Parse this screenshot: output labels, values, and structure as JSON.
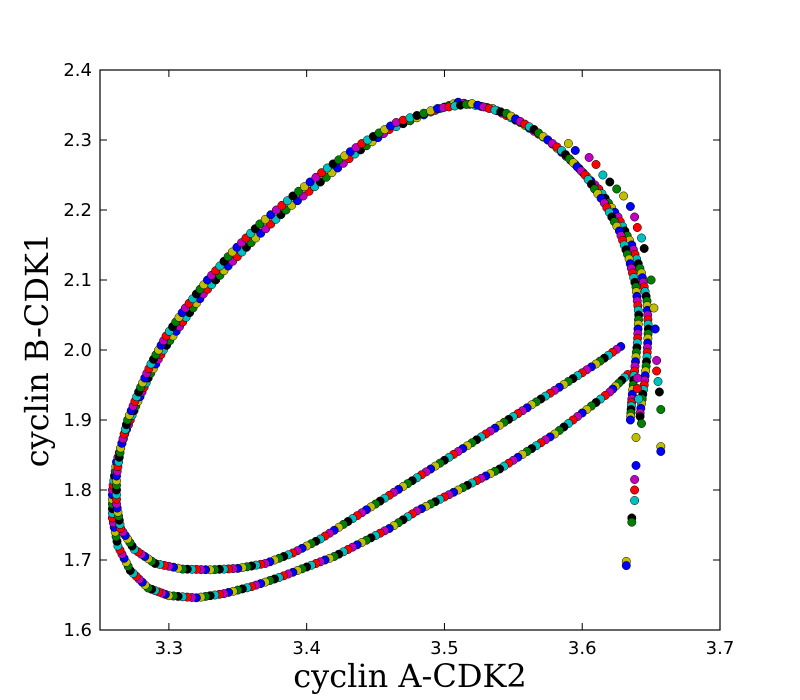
{
  "chart_data": {
    "type": "scatter",
    "title": "",
    "xlabel": "cyclin A-CDK2",
    "ylabel": "cyclin B-CDK1",
    "xlim": [
      3.25,
      3.7
    ],
    "ylim": [
      1.6,
      2.4
    ],
    "x_ticks": [
      "3.3",
      "3.4",
      "3.5",
      "3.6",
      "3.7"
    ],
    "y_ticks": [
      "1.6",
      "1.7",
      "1.8",
      "1.9",
      "2.0",
      "2.1",
      "2.2",
      "2.3",
      "2.4"
    ],
    "grid": false,
    "marker_colors": [
      "#ff0000",
      "#0000ff",
      "#008000",
      "#00bfbf",
      "#bf00bf",
      "#bfbf00",
      "#000000"
    ],
    "series": [
      {
        "trajectory": "outer-loop",
        "points": [
          [
            3.633,
            1.965
          ],
          [
            3.62,
            1.94
          ],
          [
            3.6,
            1.91
          ],
          [
            3.58,
            1.88
          ],
          [
            3.56,
            1.855
          ],
          [
            3.54,
            1.83
          ],
          [
            3.52,
            1.81
          ],
          [
            3.5,
            1.79
          ],
          [
            3.48,
            1.77
          ],
          [
            3.46,
            1.745
          ],
          [
            3.44,
            1.725
          ],
          [
            3.42,
            1.705
          ],
          [
            3.4,
            1.69
          ],
          [
            3.38,
            1.675
          ],
          [
            3.36,
            1.662
          ],
          [
            3.34,
            1.652
          ],
          [
            3.32,
            1.646
          ],
          [
            3.3,
            1.649
          ],
          [
            3.285,
            1.66
          ],
          [
            3.272,
            1.685
          ],
          [
            3.263,
            1.72
          ],
          [
            3.259,
            1.76
          ],
          [
            3.259,
            1.8
          ],
          [
            3.262,
            1.84
          ],
          [
            3.268,
            1.88
          ],
          [
            3.276,
            1.92
          ],
          [
            3.285,
            1.96
          ],
          [
            3.296,
            2.0
          ],
          [
            3.31,
            2.04
          ],
          [
            3.325,
            2.08
          ],
          [
            3.343,
            2.12
          ],
          [
            3.363,
            2.16
          ],
          [
            3.385,
            2.2
          ],
          [
            3.41,
            2.24
          ],
          [
            3.435,
            2.28
          ],
          [
            3.46,
            2.315
          ],
          [
            3.49,
            2.34
          ],
          [
            3.51,
            2.354
          ],
          [
            3.535,
            2.345
          ],
          [
            3.555,
            2.325
          ],
          [
            3.575,
            2.3
          ],
          [
            3.595,
            2.265
          ],
          [
            3.612,
            2.23
          ],
          [
            3.626,
            2.19
          ],
          [
            3.636,
            2.15
          ],
          [
            3.643,
            2.11
          ],
          [
            3.647,
            2.07
          ],
          [
            3.648,
            2.03
          ],
          [
            3.647,
            1.99
          ],
          [
            3.645,
            1.95
          ],
          [
            3.642,
            1.91
          ]
        ]
      },
      {
        "trajectory": "inner-loop",
        "points": [
          [
            3.628,
            2.005
          ],
          [
            3.61,
            1.98
          ],
          [
            3.59,
            1.955
          ],
          [
            3.57,
            1.93
          ],
          [
            3.55,
            1.905
          ],
          [
            3.53,
            1.88
          ],
          [
            3.51,
            1.855
          ],
          [
            3.49,
            1.83
          ],
          [
            3.47,
            1.805
          ],
          [
            3.45,
            1.78
          ],
          [
            3.43,
            1.755
          ],
          [
            3.41,
            1.73
          ],
          [
            3.39,
            1.71
          ],
          [
            3.37,
            1.695
          ],
          [
            3.35,
            1.688
          ],
          [
            3.33,
            1.686
          ],
          [
            3.31,
            1.687
          ],
          [
            3.29,
            1.695
          ],
          [
            3.275,
            1.715
          ],
          [
            3.265,
            1.745
          ],
          [
            3.262,
            1.78
          ],
          [
            3.262,
            1.82
          ],
          [
            3.265,
            1.86
          ],
          [
            3.27,
            1.9
          ],
          [
            3.278,
            1.94
          ],
          [
            3.287,
            1.98
          ],
          [
            3.298,
            2.02
          ],
          [
            3.312,
            2.06
          ],
          [
            3.328,
            2.1
          ],
          [
            3.346,
            2.14
          ],
          [
            3.366,
            2.18
          ],
          [
            3.39,
            2.22
          ],
          [
            3.415,
            2.26
          ],
          [
            3.44,
            2.295
          ],
          [
            3.465,
            2.325
          ],
          [
            3.495,
            2.345
          ],
          [
            3.52,
            2.352
          ],
          [
            3.545,
            2.338
          ],
          [
            3.565,
            2.315
          ],
          [
            3.585,
            2.285
          ],
          [
            3.602,
            2.25
          ],
          [
            3.616,
            2.21
          ],
          [
            3.627,
            2.17
          ],
          [
            3.634,
            2.13
          ],
          [
            3.639,
            2.09
          ],
          [
            3.641,
            2.05
          ],
          [
            3.64,
            2.01
          ],
          [
            3.638,
            1.97
          ],
          [
            3.636,
            1.93
          ],
          [
            3.635,
            1.9
          ]
        ]
      },
      {
        "trajectory": "scattered-transients",
        "points": [
          [
            3.59,
            2.295
          ],
          [
            3.595,
            2.285
          ],
          [
            3.605,
            2.275
          ],
          [
            3.61,
            2.265
          ],
          [
            3.615,
            2.25
          ],
          [
            3.62,
            2.24
          ],
          [
            3.625,
            2.23
          ],
          [
            3.63,
            2.22
          ],
          [
            3.635,
            2.205
          ],
          [
            3.638,
            2.19
          ],
          [
            3.64,
            2.175
          ],
          [
            3.643,
            2.16
          ],
          [
            3.645,
            2.145
          ],
          [
            3.65,
            2.1
          ],
          [
            3.652,
            2.06
          ],
          [
            3.653,
            2.03
          ],
          [
            3.654,
            1.985
          ],
          [
            3.654,
            1.97
          ],
          [
            3.655,
            1.955
          ],
          [
            3.656,
            1.94
          ],
          [
            3.657,
            1.915
          ],
          [
            3.657,
            1.862
          ],
          [
            3.657,
            1.855
          ],
          [
            3.64,
            1.96
          ],
          [
            3.64,
            1.945
          ],
          [
            3.641,
            1.93
          ],
          [
            3.642,
            1.905
          ],
          [
            3.643,
            1.895
          ],
          [
            3.639,
            1.875
          ],
          [
            3.639,
            1.835
          ],
          [
            3.638,
            1.815
          ],
          [
            3.638,
            1.8
          ],
          [
            3.638,
            1.785
          ],
          [
            3.636,
            1.76
          ],
          [
            3.636,
            1.754
          ],
          [
            3.632,
            1.698
          ],
          [
            3.632,
            1.692
          ]
        ]
      }
    ]
  }
}
